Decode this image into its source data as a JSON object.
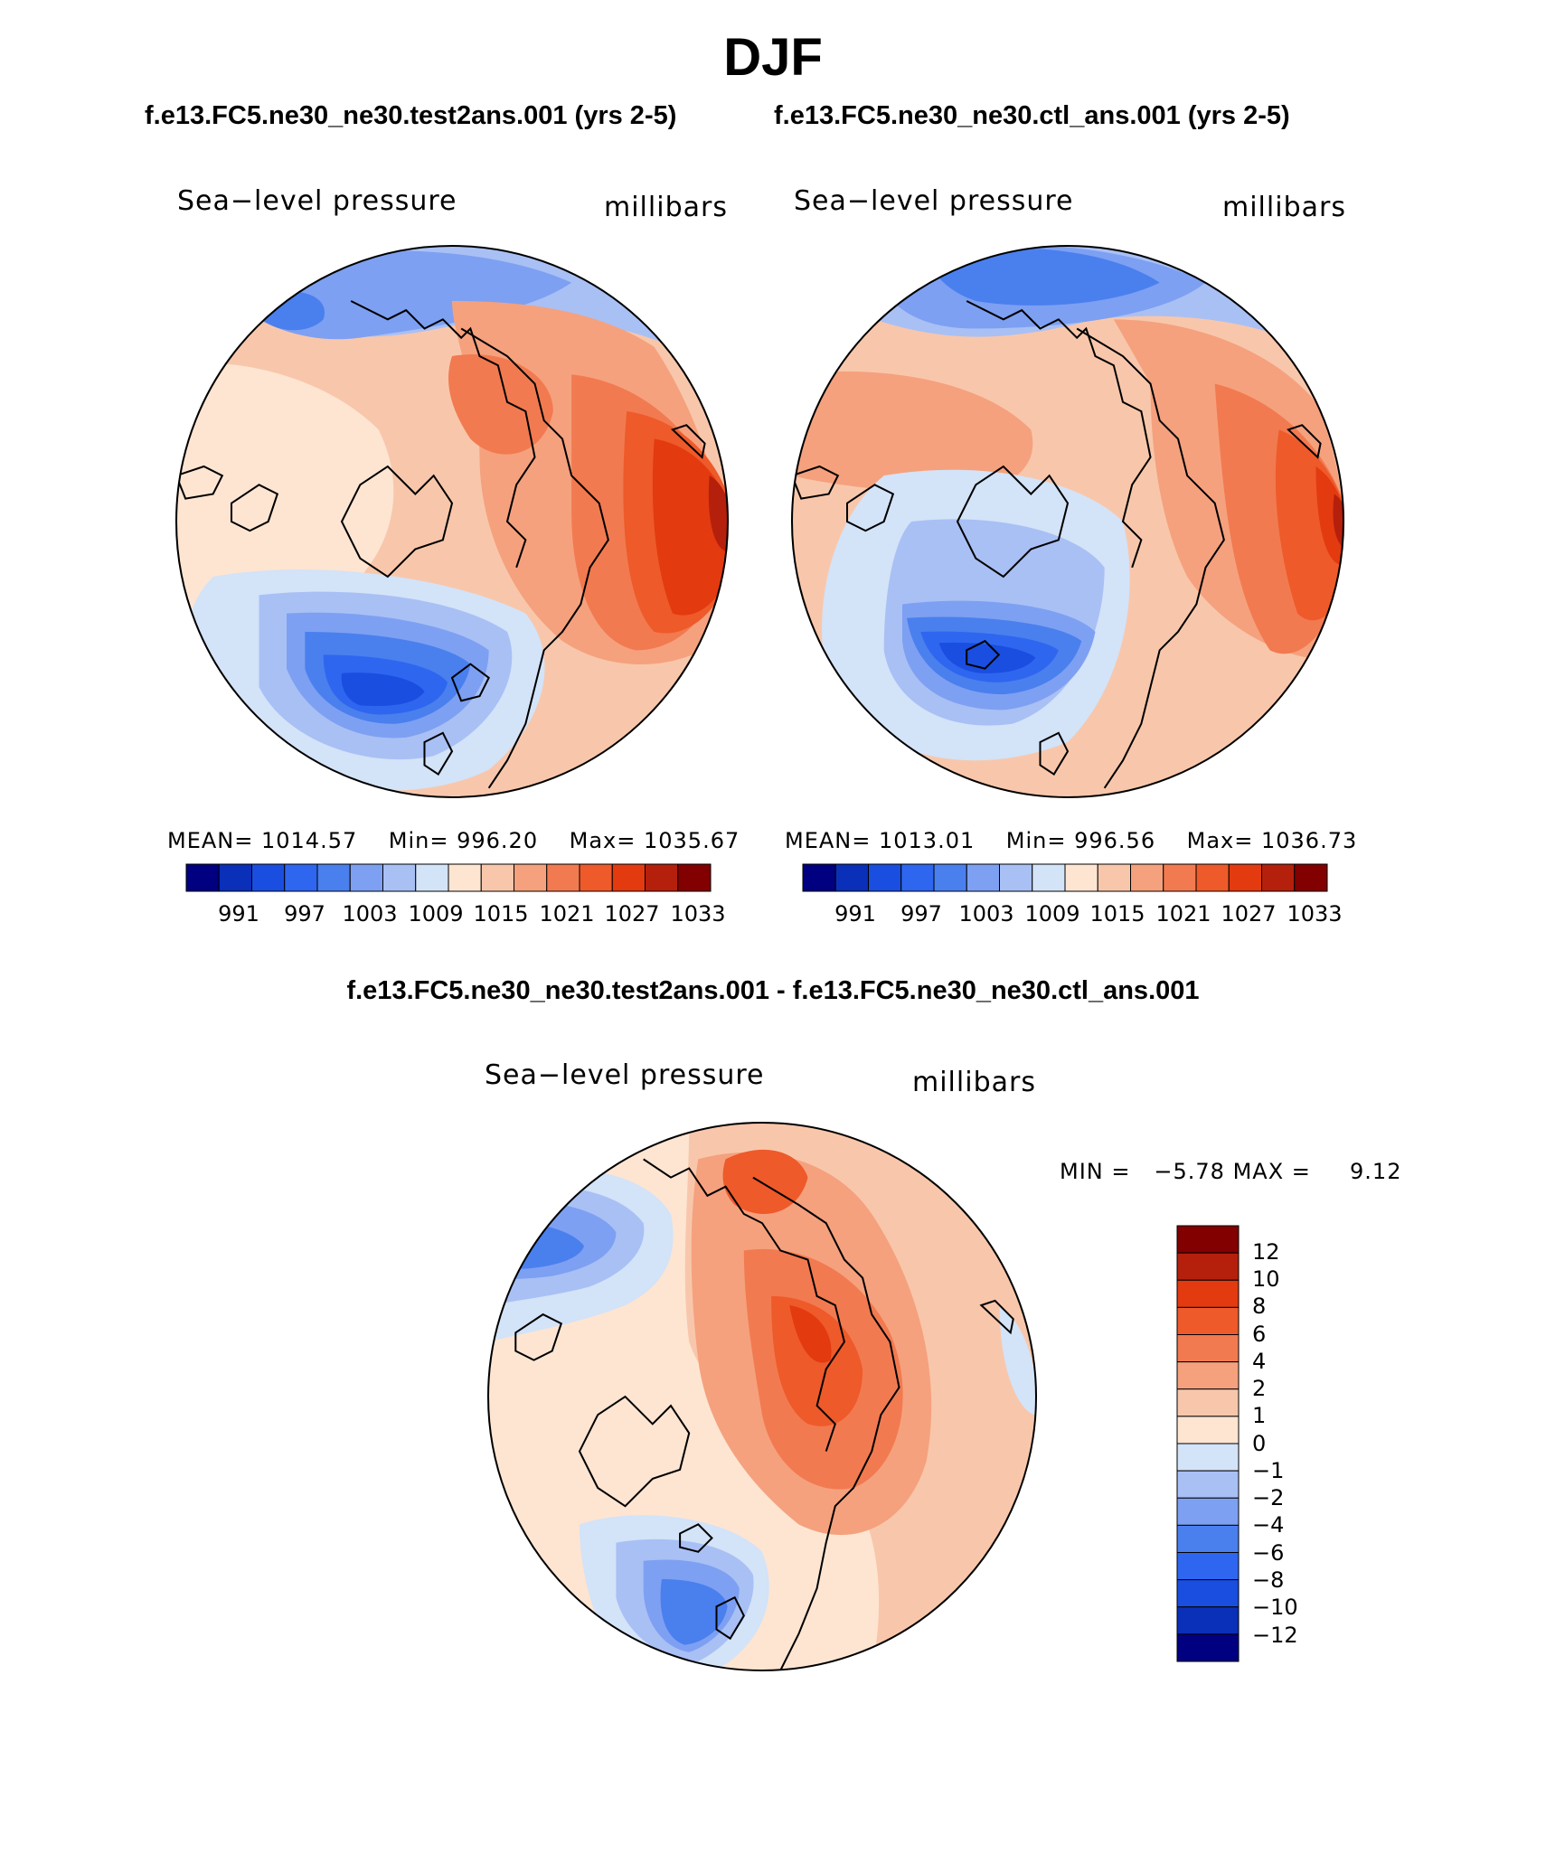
{
  "header": {
    "title": "DJF",
    "left_run": "f.e13.FC5.ne30_ne30.test2ans.001 (yrs 2-5)",
    "right_run": "f.e13.FC5.ne30_ne30.ctl_ans.001 (yrs 2-5)",
    "diff_title": "f.e13.FC5.ne30_ne30.test2ans.001 - f.e13.FC5.ne30_ne30.ctl_ans.001"
  },
  "colors": {
    "abs_levels": [
      "#000080",
      "#0a2fb8",
      "#1a4ee0",
      "#2e66f0",
      "#4a7fee",
      "#7ea0f2",
      "#a9c0f5",
      "#d3e3f8",
      "#fde5d2",
      "#f8c7ab",
      "#f5a17e",
      "#f27a50",
      "#ee5a2a",
      "#e33a10",
      "#b5200c",
      "#820000"
    ],
    "diff_levels": [
      "#000080",
      "#0a2fb8",
      "#1a4ee0",
      "#2e66f0",
      "#4a7fee",
      "#7ea0f2",
      "#a9c0f5",
      "#d3e3f8",
      "#fde5d2",
      "#f8c7ab",
      "#f5a17e",
      "#f27a50",
      "#ee5a2a",
      "#e33a10",
      "#b5200c",
      "#820000"
    ],
    "coastline": "#000000"
  },
  "panels": {
    "test": {
      "variable": "Sea−level pressure",
      "units": "millibars",
      "mean_label": "MEAN=",
      "mean": "1014.57",
      "min_label": "Min=",
      "min": "996.20",
      "max_label": "Max=",
      "max": "1035.67",
      "tick_labels": [
        "991",
        "997",
        "1003",
        "1009",
        "1015",
        "1021",
        "1027",
        "1033"
      ]
    },
    "ctl": {
      "variable": "Sea−level pressure",
      "units": "millibars",
      "mean_label": "MEAN=",
      "mean": "1013.01",
      "min_label": "Min=",
      "min": "996.56",
      "max_label": "Max=",
      "max": "1036.73",
      "tick_labels": [
        "991",
        "997",
        "1003",
        "1009",
        "1015",
        "1021",
        "1027",
        "1033"
      ]
    },
    "diff": {
      "variable": "Sea−level pressure",
      "units": "millibars",
      "min_label": "MIN =",
      "min": "−5.78",
      "max_label": "MAX =",
      "max": "9.12",
      "tick_labels": [
        "12",
        "10",
        "8",
        "6",
        "4",
        "2",
        "1",
        "0",
        "−1",
        "−2",
        "−4",
        "−6",
        "−8",
        "−10",
        "−12"
      ]
    }
  }
}
